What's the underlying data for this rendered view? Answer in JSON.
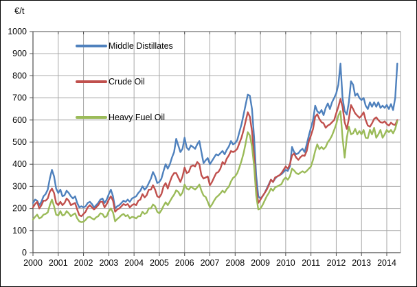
{
  "unit_label": "€/t",
  "legend": {
    "items": [
      {
        "label": "Middle Distillates",
        "color": "#4F81BD"
      },
      {
        "label": "Crude Oil",
        "color": "#C0504D"
      },
      {
        "label": "Heavy Fuel Oil",
        "color": "#9BBB59"
      }
    ]
  },
  "colors": {
    "gridline": "#a6a6a6",
    "axis": "#4d4d4d",
    "text": "#000000",
    "background": "#ffffff"
  },
  "chart_data": {
    "type": "line",
    "title": "",
    "xlabel": "",
    "ylabel": "€/t",
    "grid": true,
    "legend_position": "inside-top-left",
    "x_start_year": 2000,
    "points_per_year": 12,
    "x_end": "2014-06",
    "ylim": [
      0,
      1000
    ],
    "y_ticks": [
      0,
      100,
      200,
      300,
      400,
      500,
      600,
      700,
      800,
      900,
      1000
    ],
    "x_tick_labels": [
      "2000",
      "2001",
      "2002",
      "2003",
      "2004",
      "2005",
      "2006",
      "2007",
      "2008",
      "2009",
      "2010",
      "2011",
      "2012",
      "2013",
      "2014"
    ],
    "series": [
      {
        "name": "Middle Distillates",
        "color": "#4F81BD",
        "values": [
          225,
          240,
          235,
          215,
          230,
          255,
          265,
          285,
          335,
          375,
          345,
          290,
          270,
          285,
          255,
          260,
          280,
          270,
          255,
          245,
          255,
          225,
          205,
          210,
          205,
          210,
          225,
          230,
          220,
          205,
          215,
          225,
          240,
          245,
          225,
          240,
          265,
          285,
          255,
          200,
          210,
          215,
          225,
          235,
          230,
          240,
          230,
          245,
          250,
          255,
          270,
          280,
          300,
          285,
          295,
          315,
          335,
          365,
          345,
          315,
          320,
          335,
          370,
          400,
          380,
          400,
          430,
          455,
          515,
          485,
          455,
          470,
          520,
          475,
          465,
          485,
          478,
          470,
          490,
          505,
          455,
          405,
          418,
          428,
          400,
          415,
          430,
          445,
          440,
          450,
          460,
          445,
          465,
          480,
          505,
          490,
          495,
          510,
          545,
          580,
          625,
          670,
          715,
          710,
          650,
          520,
          350,
          255,
          245,
          255,
          270,
          290,
          310,
          330,
          320,
          335,
          345,
          350,
          355,
          365,
          375,
          370,
          390,
          478,
          455,
          445,
          450,
          462,
          470,
          455,
          490,
          530,
          565,
          600,
          665,
          640,
          630,
          645,
          622,
          655,
          675,
          650,
          680,
          700,
          720,
          760,
          855,
          700,
          640,
          625,
          680,
          775,
          760,
          710,
          720,
          700,
          690,
          700,
          665,
          650,
          680,
          660,
          680,
          660,
          680,
          655,
          665,
          655,
          668,
          650,
          672,
          645,
          700,
          855
        ]
      },
      {
        "name": "Crude Oil",
        "color": "#C0504D",
        "values": [
          205,
          220,
          230,
          200,
          215,
          235,
          235,
          245,
          275,
          290,
          270,
          225,
          215,
          230,
          215,
          225,
          245,
          235,
          215,
          220,
          225,
          195,
          170,
          165,
          175,
          185,
          205,
          215,
          205,
          195,
          205,
          215,
          230,
          230,
          205,
          220,
          240,
          255,
          235,
          185,
          195,
          200,
          210,
          220,
          215,
          220,
          205,
          215,
          220,
          215,
          235,
          240,
          265,
          250,
          260,
          285,
          285,
          305,
          285,
          255,
          250,
          265,
          300,
          315,
          290,
          320,
          345,
          360,
          360,
          340,
          320,
          345,
          385,
          360,
          365,
          390,
          395,
          390,
          410,
          400,
          350,
          335,
          340,
          345,
          305,
          320,
          340,
          360,
          365,
          380,
          410,
          400,
          425,
          440,
          460,
          455,
          460,
          470,
          495,
          520,
          555,
          595,
          635,
          615,
          550,
          430,
          290,
          225,
          240,
          255,
          270,
          285,
          305,
          330,
          320,
          340,
          345,
          350,
          360,
          375,
          390,
          380,
          400,
          440,
          448,
          430,
          420,
          432,
          440,
          438,
          460,
          505,
          530,
          560,
          615,
          626,
          605,
          590,
          585,
          565,
          575,
          580,
          590,
          600,
          630,
          660,
          695,
          660,
          590,
          560,
          605,
          668,
          650,
          630,
          620,
          610,
          620,
          635,
          600,
          575,
          570,
          585,
          605,
          612,
          600,
          590,
          588,
          594,
          582,
          575,
          588,
          580,
          578,
          600
        ]
      },
      {
        "name": "Heavy Fuel Oil",
        "color": "#9BBB59",
        "values": [
          150,
          162,
          172,
          155,
          160,
          172,
          175,
          182,
          215,
          240,
          210,
          172,
          168,
          188,
          168,
          172,
          188,
          178,
          165,
          172,
          178,
          155,
          142,
          138,
          140,
          148,
          160,
          162,
          155,
          150,
          160,
          165,
          178,
          175,
          160,
          165,
          188,
          200,
          182,
          142,
          152,
          160,
          170,
          175,
          165,
          170,
          155,
          162,
          160,
          155,
          165,
          165,
          185,
          175,
          180,
          200,
          200,
          218,
          210,
          185,
          178,
          192,
          212,
          228,
          215,
          232,
          248,
          262,
          282,
          275,
          258,
          272,
          308,
          290,
          285,
          298,
          292,
          285,
          295,
          308,
          280,
          258,
          252,
          230,
          205,
          218,
          235,
          250,
          258,
          268,
          280,
          272,
          288,
          298,
          322,
          338,
          345,
          360,
          385,
          415,
          450,
          495,
          545,
          530,
          480,
          390,
          260,
          195,
          200,
          215,
          235,
          255,
          270,
          290,
          280,
          295,
          300,
          305,
          310,
          330,
          340,
          330,
          345,
          380,
          372,
          360,
          355,
          362,
          368,
          362,
          370,
          380,
          390,
          420,
          460,
          490,
          468,
          478,
          468,
          478,
          500,
          512,
          530,
          555,
          580,
          620,
          640,
          520,
          430,
          520,
          570,
          535,
          540,
          560,
          535,
          550,
          535,
          555,
          520,
          518,
          556,
          535,
          565,
          520,
          535,
          555,
          520,
          535,
          555,
          545,
          555,
          540,
          560,
          595
        ]
      }
    ]
  }
}
